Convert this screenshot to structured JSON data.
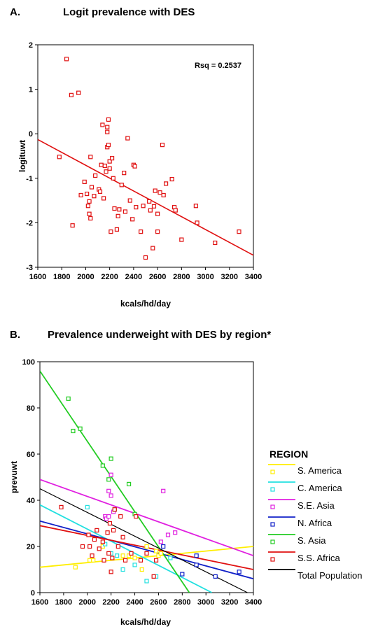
{
  "chart_data": [
    {
      "type": "scatter",
      "panel_label": "A.",
      "title": "Logit prevalence with DES",
      "xlabel": "kcals/hd/day",
      "ylabel": "logituwt",
      "xlim": [
        1600,
        3400
      ],
      "ylim": [
        -3,
        2
      ],
      "xticks": [
        "1600",
        "1800",
        "2000",
        "2200",
        "2400",
        "2600",
        "2800",
        "3000",
        "3200",
        "3400"
      ],
      "yticks": [
        "2",
        "1",
        "0",
        "-1",
        "-2",
        "-3"
      ],
      "annotation": "Rsq = 0.2537",
      "point_color": "#e01010",
      "fit_line": {
        "x": [
          1600,
          3400
        ],
        "y": [
          -0.13,
          -2.73
        ],
        "color": "#e01010"
      },
      "points": [
        [
          1840,
          1.68
        ],
        [
          1880,
          0.87
        ],
        [
          1940,
          0.92
        ],
        [
          1780,
          -0.52
        ],
        [
          1890,
          -2.06
        ],
        [
          1960,
          -1.38
        ],
        [
          1990,
          -1.08
        ],
        [
          2010,
          -1.35
        ],
        [
          2020,
          -1.62
        ],
        [
          2030,
          -1.8
        ],
        [
          2040,
          -1.9
        ],
        [
          2030,
          -1.52
        ],
        [
          2040,
          -0.52
        ],
        [
          2050,
          -1.2
        ],
        [
          2070,
          -1.4
        ],
        [
          2080,
          -0.94
        ],
        [
          2110,
          -1.25
        ],
        [
          2120,
          -1.3
        ],
        [
          2130,
          -0.7
        ],
        [
          2140,
          0.2
        ],
        [
          2150,
          -1.45
        ],
        [
          2160,
          -0.72
        ],
        [
          2170,
          -0.85
        ],
        [
          2180,
          -0.3
        ],
        [
          2180,
          0.04
        ],
        [
          2190,
          0.32
        ],
        [
          2200,
          -0.62
        ],
        [
          2200,
          -0.78
        ],
        [
          2210,
          -2.2
        ],
        [
          2220,
          -0.55
        ],
        [
          2230,
          -1.0
        ],
        [
          2240,
          -1.68
        ],
        [
          2260,
          -2.15
        ],
        [
          2270,
          -1.85
        ],
        [
          2280,
          -1.7
        ],
        [
          2300,
          -1.15
        ],
        [
          2320,
          -0.88
        ],
        [
          2330,
          -1.75
        ],
        [
          2350,
          -0.1
        ],
        [
          2370,
          -1.5
        ],
        [
          2390,
          -1.92
        ],
        [
          2400,
          -0.7
        ],
        [
          2410,
          -0.73
        ],
        [
          2420,
          -1.65
        ],
        [
          2460,
          -2.2
        ],
        [
          2480,
          -1.62
        ],
        [
          2500,
          -2.78
        ],
        [
          2530,
          -1.52
        ],
        [
          2540,
          -1.72
        ],
        [
          2560,
          -2.57
        ],
        [
          2570,
          -1.63
        ],
        [
          2580,
          -1.28
        ],
        [
          2600,
          -2.2
        ],
        [
          2600,
          -1.8
        ],
        [
          2620,
          -1.32
        ],
        [
          2640,
          -0.25
        ],
        [
          2650,
          -1.38
        ],
        [
          2670,
          -1.12
        ],
        [
          2720,
          -1.02
        ],
        [
          2740,
          -1.65
        ],
        [
          2750,
          -1.72
        ],
        [
          2800,
          -2.38
        ],
        [
          2920,
          -1.62
        ],
        [
          2930,
          -2.0
        ],
        [
          3080,
          -2.45
        ],
        [
          3280,
          -2.2
        ],
        [
          2190,
          -0.25
        ],
        [
          2180,
          0.15
        ]
      ]
    },
    {
      "type": "scatter",
      "panel_label": "B.",
      "title": "Prevalence underweight with DES by region*",
      "xlabel": "kcals/hd/day",
      "ylabel": "prevuwt",
      "xlim": [
        1600,
        3400
      ],
      "ylim": [
        0,
        100
      ],
      "xticks": [
        "1600",
        "1800",
        "2000",
        "2200",
        "2400",
        "2600",
        "2800",
        "3000",
        "3200",
        "3400"
      ],
      "yticks": [
        "100",
        "80",
        "60",
        "40",
        "20",
        "0"
      ],
      "legend_title": "REGION",
      "legend_position": "right",
      "series": [
        {
          "name": "S. America",
          "color": "#ffee00",
          "points": [
            [
              1900,
              11
            ],
            [
              2020,
              14
            ],
            [
              2050,
              14
            ],
            [
              2130,
              20
            ],
            [
              2300,
              16
            ],
            [
              2350,
              16
            ],
            [
              2400,
              15
            ],
            [
              2460,
              10
            ],
            [
              2500,
              20
            ],
            [
              2580,
              18
            ],
            [
              2600,
              16
            ],
            [
              2620,
              17
            ]
          ],
          "fit": [
            [
              1600,
              11
            ],
            [
              3400,
              20
            ]
          ]
        },
        {
          "name": "C. America",
          "color": "#22e0e0",
          "points": [
            [
              2000,
              37
            ],
            [
              2150,
              21
            ],
            [
              2200,
              17
            ],
            [
              2250,
              16
            ],
            [
              2300,
              10
            ],
            [
              2400,
              12
            ],
            [
              2500,
              5
            ],
            [
              2580,
              7
            ],
            [
              2700,
              15
            ]
          ],
          "fit": [
            [
              1600,
              38
            ],
            [
              3050,
              0
            ]
          ]
        },
        {
          "name": "S.E. Asia",
          "color": "#e020e0",
          "points": [
            [
              2150,
              33
            ],
            [
              2160,
              32
            ],
            [
              2180,
              44
            ],
            [
              2180,
              33
            ],
            [
              2200,
              51
            ],
            [
              2200,
              42
            ],
            [
              2220,
              35
            ],
            [
              2620,
              22
            ],
            [
              2640,
              44
            ],
            [
              2680,
              25
            ],
            [
              2740,
              26
            ]
          ],
          "fit": [
            [
              1600,
              49
            ],
            [
              3400,
              16
            ]
          ]
        },
        {
          "name": "N. Africa",
          "color": "#1020c8",
          "points": [
            [
              2640,
              20
            ],
            [
              2800,
              8
            ],
            [
              2920,
              16
            ],
            [
              3080,
              7
            ],
            [
              3280,
              9
            ],
            [
              2920,
              12
            ]
          ],
          "fit": [
            [
              1600,
              31
            ],
            [
              3400,
              6
            ]
          ]
        },
        {
          "name": "S. Asia",
          "color": "#22cc22",
          "points": [
            [
              1840,
              84
            ],
            [
              1880,
              70
            ],
            [
              1940,
              71
            ],
            [
              2130,
              55
            ],
            [
              2180,
              49
            ],
            [
              2200,
              58
            ],
            [
              2230,
              36
            ],
            [
              2350,
              47
            ],
            [
              2400,
              34
            ]
          ],
          "fit": [
            [
              1600,
              96
            ],
            [
              2860,
              0
            ]
          ]
        },
        {
          "name": "S.S. Africa",
          "color": "#e01010",
          "points": [
            [
              1780,
              37
            ],
            [
              1960,
              20
            ],
            [
              2010,
              25
            ],
            [
              2020,
              20
            ],
            [
              2040,
              16
            ],
            [
              2060,
              23
            ],
            [
              2080,
              27
            ],
            [
              2100,
              19
            ],
            [
              2130,
              22
            ],
            [
              2140,
              14
            ],
            [
              2170,
              26
            ],
            [
              2180,
              17
            ],
            [
              2190,
              30
            ],
            [
              2200,
              9
            ],
            [
              2210,
              15
            ],
            [
              2220,
              27
            ],
            [
              2230,
              36
            ],
            [
              2260,
              20
            ],
            [
              2280,
              33
            ],
            [
              2300,
              24
            ],
            [
              2320,
              14
            ],
            [
              2370,
              17
            ],
            [
              2410,
              33
            ],
            [
              2450,
              14
            ],
            [
              2500,
              17
            ],
            [
              2560,
              7
            ],
            [
              2580,
              14
            ]
          ],
          "fit": [
            [
              1600,
              29
            ],
            [
              3400,
              10
            ]
          ]
        },
        {
          "name": "Total Population",
          "color": "#000000",
          "points": [],
          "fit": [
            [
              1600,
              45
            ],
            [
              3350,
              0
            ]
          ]
        }
      ]
    }
  ]
}
